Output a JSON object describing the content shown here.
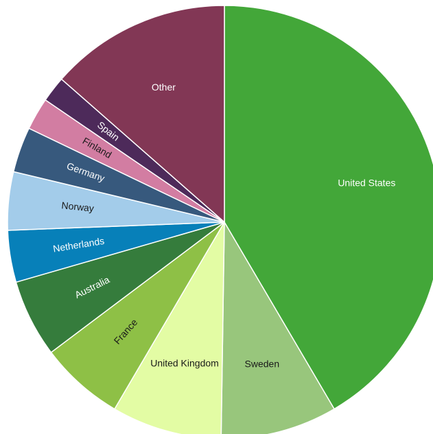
{
  "chart_data": {
    "type": "pie",
    "start_angle_deg": 0,
    "direction": "clockwise",
    "slices": [
      {
        "label": "United States",
        "value": 43.0,
        "color": "#43a739",
        "label_color": "#ffffff"
      },
      {
        "label": "Sweden",
        "value": 9.0,
        "color": "#98c67c",
        "label_color": "#1a1a1a"
      },
      {
        "label": "United Kingdom",
        "value": 8.5,
        "color": "#e3fca4",
        "label_color": "#1a1a1a"
      },
      {
        "label": "France",
        "value": 6.5,
        "color": "#8ec046",
        "label_color": "#1a1a1a"
      },
      {
        "label": "Australia",
        "value": 6.0,
        "color": "#357c3c",
        "label_color": "#ffffff"
      },
      {
        "label": "Netherlands",
        "value": 4.0,
        "color": "#0780b9",
        "label_color": "#ffffff"
      },
      {
        "label": "Norway",
        "value": 4.5,
        "color": "#a3ccea",
        "label_color": "#1a1a1a"
      },
      {
        "label": "Germany",
        "value": 3.5,
        "color": "#37597d",
        "label_color": "#ffffff"
      },
      {
        "label": "Finland",
        "value": 2.5,
        "color": "#d27da2",
        "label_color": "#1a1a1a"
      },
      {
        "label": "Spain",
        "value": 2.0,
        "color": "#4d2a5a",
        "label_color": "#ffffff"
      },
      {
        "label": "Other",
        "value": 14.0,
        "color": "#823755",
        "label_color": "#ffffff"
      }
    ]
  }
}
